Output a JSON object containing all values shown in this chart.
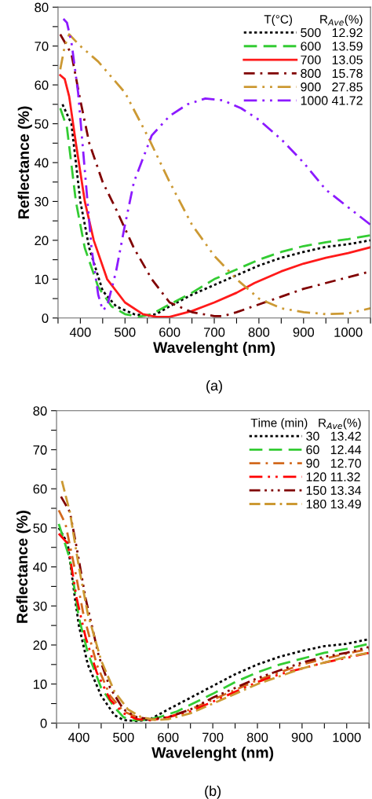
{
  "chart_data": [
    {
      "type": "line",
      "xlabel": "Wavelenght (nm)",
      "ylabel": "Reflectance (%)",
      "annotations": [
        "(a)"
      ],
      "legend_title": "T(°C)        R$_{Ave}$(%)",
      "legend": "top right",
      "grid": false,
      "xlim": [
        350,
        1050
      ],
      "xticks": [
        {
          "value": 350,
          "label": null
        },
        400,
        {
          "value": 450,
          "label": null
        },
        500,
        {
          "value": 550,
          "label": null
        },
        600,
        {
          "value": 650,
          "label": null
        },
        700,
        {
          "value": 750,
          "label": null
        },
        800,
        {
          "value": 850,
          "label": null
        },
        900,
        {
          "value": 950,
          "label": null
        },
        1000,
        {
          "value": 1050,
          "label": null
        }
      ],
      "ylim": [
        0,
        80
      ],
      "yticks": [
        0,
        {
          "value": 5,
          "label": null
        },
        10,
        {
          "value": 15,
          "label": null
        },
        20,
        {
          "value": 25,
          "label": null
        },
        30,
        {
          "value": 35,
          "label": null
        },
        40,
        {
          "value": 45,
          "label": null
        },
        50,
        {
          "value": 55,
          "label": null
        },
        60,
        {
          "value": 65,
          "label": null
        },
        70,
        {
          "value": 75,
          "label": null
        },
        80
      ],
      "series": [
        {
          "name": "500   12.92",
          "color": "#000000",
          "line_style": "dotted",
          "x": [
            360,
            380,
            400,
            420,
            450,
            480,
            520,
            550,
            570,
            600,
            650,
            700,
            750,
            800,
            850,
            900,
            950,
            1000,
            1050
          ],
          "values": [
            55,
            50,
            30,
            18,
            7,
            3,
            1,
            0.5,
            1,
            3,
            6,
            8.5,
            11,
            13.5,
            15.5,
            17,
            18.3,
            19,
            20
          ]
        },
        {
          "name": "600   13.59",
          "color": "#33cc33",
          "line_style": "dashed",
          "x": [
            355,
            370,
            390,
            410,
            440,
            470,
            500,
            530,
            560,
            600,
            650,
            700,
            750,
            800,
            850,
            900,
            950,
            1000,
            1050
          ],
          "values": [
            54,
            49,
            30,
            18,
            8,
            3,
            1,
            0.3,
            1,
            3.5,
            6.5,
            10,
            12.5,
            15,
            17,
            18.5,
            19.5,
            20.3,
            21.3
          ]
        },
        {
          "name": "700   13.05",
          "color": "#ff1a1a",
          "line_style": "solid",
          "x": [
            355,
            365,
            375,
            390,
            410,
            430,
            460,
            500,
            540,
            570,
            600,
            650,
            700,
            750,
            790,
            850,
            900,
            950,
            1000,
            1050
          ],
          "values": [
            62.5,
            61.5,
            57,
            45,
            30,
            20,
            10,
            4,
            1,
            0.3,
            0.3,
            1.8,
            4,
            6.5,
            9,
            12,
            14,
            15.5,
            16.7,
            18.2
          ]
        },
        {
          "name": "800   15.78",
          "color": "#800000",
          "line_style": "dashdot",
          "x": [
            355,
            380,
            400,
            420,
            450,
            480,
            520,
            560,
            600,
            650,
            700,
            720,
            750,
            800,
            850,
            900,
            950,
            1000,
            1050
          ],
          "values": [
            73,
            68,
            56,
            45,
            35,
            28,
            18,
            10,
            4,
            1.5,
            0.5,
            0.5,
            1.5,
            3.5,
            5.5,
            7.5,
            9,
            10.5,
            12
          ]
        },
        {
          "name": "900   27.85",
          "color": "#cc9933",
          "line_style": "dashdotdot",
          "x": [
            355,
            365,
            375,
            400,
            440,
            500,
            550,
            600,
            650,
            700,
            750,
            800,
            850,
            900,
            950,
            1000,
            1050
          ],
          "values": [
            64,
            70,
            73,
            70,
            66,
            58,
            47,
            35,
            24,
            16,
            10,
            5,
            2.5,
            1.5,
            1,
            1.2,
            2.5
          ]
        },
        {
          "name": "1000 41.72",
          "color": "#8c1aff",
          "line_style": "dashdotdot",
          "x": [
            362,
            370,
            380,
            395,
            410,
            425,
            440,
            450,
            460,
            480,
            500,
            520,
            540,
            560,
            600,
            640,
            680,
            720,
            760,
            800,
            850,
            900,
            950,
            1000,
            1050
          ],
          "values": [
            77,
            76,
            71,
            58,
            38,
            18,
            6,
            2,
            3,
            12,
            24,
            35,
            41,
            47,
            52,
            55,
            56.5,
            56,
            54,
            51,
            46,
            40,
            33,
            28.5,
            24
          ]
        }
      ]
    },
    {
      "type": "line",
      "xlabel": "Wavelenght (nm)",
      "ylabel": "Reflectance (%)",
      "annotations": [
        "(b)"
      ],
      "legend_title": "Time (min)   R$_{Ave}$(%)",
      "legend": "top right",
      "grid": false,
      "xlim": [
        350,
        1050
      ],
      "xticks": [
        {
          "value": 350,
          "label": null
        },
        400,
        {
          "value": 450,
          "label": null
        },
        500,
        {
          "value": 550,
          "label": null
        },
        600,
        {
          "value": 650,
          "label": null
        },
        700,
        {
          "value": 750,
          "label": null
        },
        800,
        {
          "value": 850,
          "label": null
        },
        900,
        {
          "value": 950,
          "label": null
        },
        1000,
        {
          "value": 1050,
          "label": null
        }
      ],
      "ylim": [
        0,
        80
      ],
      "yticks": [
        0,
        {
          "value": 5,
          "label": null
        },
        10,
        {
          "value": 15,
          "label": null
        },
        20,
        {
          "value": 25,
          "label": null
        },
        30,
        {
          "value": 35,
          "label": null
        },
        40,
        {
          "value": 45,
          "label": null
        },
        50,
        {
          "value": 55,
          "label": null
        },
        60,
        {
          "value": 65,
          "label": null
        },
        70,
        {
          "value": 75,
          "label": null
        },
        80
      ],
      "series": [
        {
          "name": "30   13.42",
          "color": "#000000",
          "line_style": "dotted",
          "x": [
            355,
            375,
            390,
            400,
            420,
            450,
            480,
            500,
            530,
            560,
            600,
            650,
            700,
            750,
            800,
            850,
            900,
            950,
            1000,
            1050
          ],
          "values": [
            50,
            46,
            33,
            25,
            15,
            7,
            2,
            0.8,
            0.5,
            1,
            3.5,
            6.5,
            9.5,
            12.5,
            15,
            17,
            18.5,
            19.7,
            20.3,
            21.5
          ]
        },
        {
          "name": "60   12.44",
          "color": "#33cc33",
          "line_style": "dashed",
          "x": [
            355,
            380,
            400,
            420,
            450,
            480,
            500,
            520,
            550,
            580,
            620,
            700,
            750,
            800,
            850,
            900,
            950,
            1000,
            1050
          ],
          "values": [
            51,
            42,
            27,
            18,
            9,
            4,
            1.5,
            0.7,
            0.8,
            1.5,
            3,
            7.5,
            10.5,
            13,
            15,
            16.5,
            18,
            19,
            20.3
          ]
        },
        {
          "name": "90   12.70",
          "color": "#d2691e",
          "line_style": "dashdot",
          "x": [
            355,
            370,
            390,
            410,
            440,
            470,
            500,
            530,
            560,
            600,
            650,
            700,
            750,
            800,
            850,
            900,
            950,
            1000,
            1050
          ],
          "values": [
            54.5,
            51,
            40,
            28,
            15,
            7,
            3,
            1.5,
            0.8,
            1.5,
            3.5,
            6,
            8.5,
            11,
            13,
            15,
            16.5,
            17.8,
            19
          ]
        },
        {
          "name": "120 11.32",
          "color": "#ff0000",
          "line_style": "dashdotdot",
          "x": [
            355,
            375,
            395,
            415,
            440,
            470,
            500,
            530,
            560,
            600,
            650,
            700,
            750,
            800,
            850,
            900,
            950,
            1000,
            1050
          ],
          "values": [
            48.5,
            46,
            32,
            22,
            13,
            6,
            2.5,
            1,
            0.7,
            1.5,
            3,
            5.5,
            8,
            10.5,
            12.5,
            14,
            15.5,
            16.7,
            18
          ]
        },
        {
          "name": "150 13.34",
          "color": "#800000",
          "line_style": "dashdotdotdot",
          "x": [
            360,
            380,
            395,
            415,
            445,
            470,
            500,
            530,
            560,
            600,
            650,
            700,
            750,
            800,
            850,
            900,
            950,
            1000,
            1050
          ],
          "values": [
            58,
            54,
            45,
            32,
            17,
            9,
            3.5,
            1.5,
            1,
            1.5,
            3.5,
            6.5,
            9,
            11.5,
            13.5,
            15.5,
            17,
            18,
            19.5
          ]
        },
        {
          "name": "180 13.49",
          "color": "#cc9933",
          "line_style": "dashdashdot",
          "x": [
            362,
            380,
            400,
            420,
            450,
            480,
            510,
            540,
            570,
            600,
            650,
            700,
            750,
            800,
            850,
            900,
            950,
            1000,
            1050
          ],
          "values": [
            62,
            54,
            40,
            28,
            16,
            8,
            3.5,
            1.5,
            0.8,
            1,
            2.5,
            5,
            7.5,
            10,
            12,
            14,
            15.5,
            17,
            18
          ]
        }
      ]
    }
  ]
}
